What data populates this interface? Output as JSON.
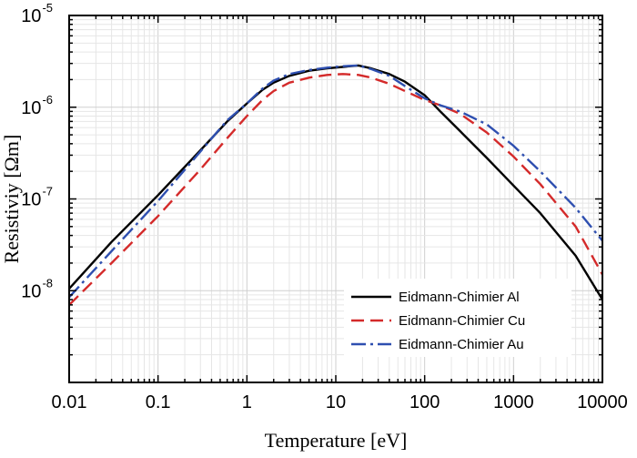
{
  "chart_data": {
    "type": "line",
    "title": "",
    "xlabel": "Temperature [eV]",
    "ylabel": "Resistiviy [Ωm]",
    "x_scale": "log",
    "y_scale": "log",
    "xlim": [
      0.01,
      10000
    ],
    "ylim": [
      1e-09,
      1e-05
    ],
    "grid": true,
    "legend_position": "bottom-right",
    "x_tick_labels": [
      "0.01",
      "0.1",
      "1",
      "10",
      "100",
      "1000",
      "10000"
    ],
    "y_tick_labels": [
      {
        "base": "10",
        "exp": "-8"
      },
      {
        "base": "10",
        "exp": "-7"
      },
      {
        "base": "10",
        "exp": "-6"
      },
      {
        "base": "10",
        "exp": "-5"
      }
    ],
    "series": [
      {
        "name": "Eidmann-Chimier Al",
        "color": "#000000",
        "style": "solid",
        "x": [
          0.01,
          0.03,
          0.1,
          0.3,
          0.6,
          1,
          1.5,
          2,
          3,
          5,
          8,
          12,
          18,
          25,
          40,
          60,
          100,
          150,
          250,
          500,
          1000,
          2000,
          5000,
          10000
        ],
        "y": [
          1.05e-08,
          3.4e-08,
          1.1e-07,
          3.4e-07,
          7e-07,
          1.1e-06,
          1.55e-06,
          1.85e-06,
          2.2e-06,
          2.5e-06,
          2.65e-06,
          2.75e-06,
          2.85e-06,
          2.65e-06,
          2.3e-06,
          1.9e-06,
          1.35e-06,
          9e-07,
          5.5e-07,
          2.8e-07,
          1.4e-07,
          7e-08,
          2.4e-08,
          8e-09
        ]
      },
      {
        "name": "Eidmann-Chimier Cu",
        "color": "#d42a2a",
        "style": "dashed",
        "x": [
          0.01,
          0.03,
          0.1,
          0.3,
          0.6,
          1,
          1.5,
          2,
          3,
          5,
          8,
          12,
          18,
          25,
          40,
          60,
          100,
          150,
          250,
          500,
          1000,
          2000,
          5000,
          10000
        ],
        "y": [
          7e-09,
          2e-08,
          6.5e-08,
          2.1e-07,
          4.6e-07,
          8e-07,
          1.2e-06,
          1.5e-06,
          1.85e-06,
          2.1e-06,
          2.25e-06,
          2.3e-06,
          2.25e-06,
          2.1e-06,
          1.8e-06,
          1.5e-06,
          1.2e-06,
          1.05e-06,
          8.5e-07,
          5.3e-07,
          2.9e-07,
          1.45e-07,
          5e-08,
          1.5e-08
        ]
      },
      {
        "name": "Eidmann-Chimier Au",
        "color": "#2e4fb0",
        "style": "dashdot",
        "x": [
          0.01,
          0.03,
          0.1,
          0.3,
          0.6,
          1,
          1.5,
          2,
          3,
          5,
          8,
          12,
          18,
          25,
          40,
          60,
          100,
          150,
          250,
          500,
          1000,
          2000,
          5000,
          10000
        ],
        "y": [
          8.5e-09,
          2.7e-08,
          9.5e-08,
          3.3e-07,
          7.2e-07,
          1.1e-06,
          1.6e-06,
          1.95e-06,
          2.3e-06,
          2.55e-06,
          2.7e-06,
          2.8e-06,
          2.85e-06,
          2.6e-06,
          2.2e-06,
          1.7e-06,
          1.25e-06,
          1.05e-06,
          9e-07,
          6.5e-07,
          3.8e-07,
          2e-07,
          8e-08,
          3.5e-08
        ]
      }
    ]
  }
}
